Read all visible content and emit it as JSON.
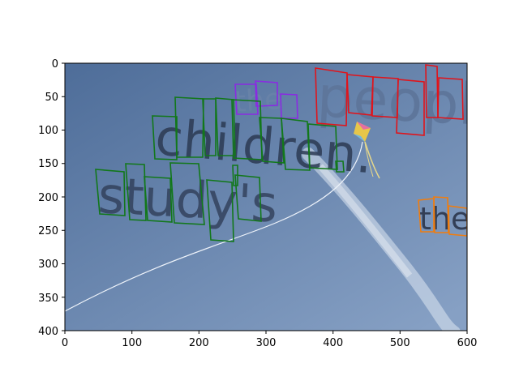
{
  "axes": {
    "x_ticks": [
      "0",
      "100",
      "200",
      "300",
      "400",
      "500",
      "600"
    ],
    "y_ticks": [
      "0",
      "50",
      "100",
      "150",
      "200",
      "250",
      "300",
      "350",
      "400"
    ],
    "xlim": [
      0,
      600
    ],
    "ylim": [
      400,
      0
    ]
  },
  "scene": {
    "sky_colors": {
      "top": "#4f6f9b",
      "bottom": "#7c97bd"
    },
    "words": [
      {
        "text": "the",
        "color": "#6b84a8"
      },
      {
        "text": "people",
        "color": "#5d7499"
      },
      {
        "text": "children.",
        "color": "#2c3a52"
      },
      {
        "text": "study's",
        "color": "#2f3d57"
      },
      {
        "text": "the",
        "color": "#2a344a"
      }
    ]
  },
  "annotations": {
    "colors": {
      "red": "#e0141b",
      "green": "#12781a",
      "purple": "#8a2be2",
      "orange": "#f07d0f"
    }
  }
}
